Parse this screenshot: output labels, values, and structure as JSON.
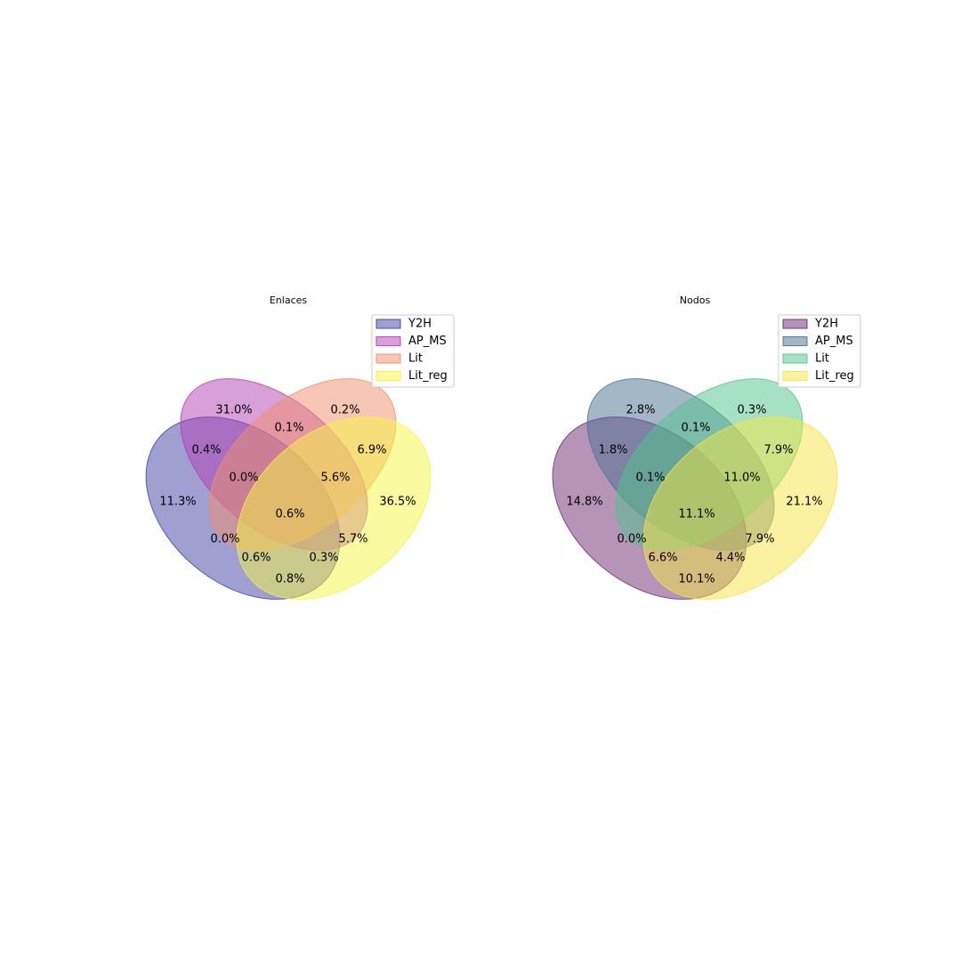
{
  "diagrams": [
    {
      "title": "Enlaces",
      "sets": [
        {
          "name": "Y2H",
          "color": "#3f3fa6"
        },
        {
          "name": "AP_MS",
          "color": "#b23fb2"
        },
        {
          "name": "Lit",
          "color": "#f08e6a"
        },
        {
          "name": "Lit_reg",
          "color": "#f5f542"
        }
      ],
      "regions": [
        {
          "sets": [
            "AP_MS"
          ],
          "label": "31.0%"
        },
        {
          "sets": [
            "Lit"
          ],
          "label": "0.2%"
        },
        {
          "sets": [
            "AP_MS",
            "Lit"
          ],
          "label": "0.1%"
        },
        {
          "sets": [
            "Y2H",
            "AP_MS"
          ],
          "label": "0.4%"
        },
        {
          "sets": [
            "Lit",
            "Lit_reg"
          ],
          "label": "6.9%"
        },
        {
          "sets": [
            "Y2H",
            "AP_MS",
            "Lit"
          ],
          "label": "0.0%"
        },
        {
          "sets": [
            "AP_MS",
            "Lit",
            "Lit_reg"
          ],
          "label": "5.6%"
        },
        {
          "sets": [
            "Y2H"
          ],
          "label": "11.3%"
        },
        {
          "sets": [
            "Lit_reg"
          ],
          "label": "36.5%"
        },
        {
          "sets": [
            "Y2H",
            "AP_MS",
            "Lit",
            "Lit_reg"
          ],
          "label": "0.6%"
        },
        {
          "sets": [
            "Y2H",
            "Lit"
          ],
          "label": "0.0%"
        },
        {
          "sets": [
            "AP_MS",
            "Lit_reg"
          ],
          "label": "5.7%"
        },
        {
          "sets": [
            "Y2H",
            "Lit",
            "Lit_reg"
          ],
          "label": "0.6%"
        },
        {
          "sets": [
            "Y2H",
            "AP_MS",
            "Lit_reg"
          ],
          "label": "0.3%"
        },
        {
          "sets": [
            "Y2H",
            "Lit_reg"
          ],
          "label": "0.8%"
        }
      ]
    },
    {
      "title": "Nodos",
      "sets": [
        {
          "name": "Y2H",
          "color": "#6b2a72"
        },
        {
          "name": "AP_MS",
          "color": "#4a7090"
        },
        {
          "name": "Lit",
          "color": "#4fc38a"
        },
        {
          "name": "Lit_reg",
          "color": "#f5e642"
        }
      ],
      "regions": [
        {
          "sets": [
            "AP_MS"
          ],
          "label": "2.8%"
        },
        {
          "sets": [
            "Lit"
          ],
          "label": "0.3%"
        },
        {
          "sets": [
            "AP_MS",
            "Lit"
          ],
          "label": "0.1%"
        },
        {
          "sets": [
            "Y2H",
            "AP_MS"
          ],
          "label": "1.8%"
        },
        {
          "sets": [
            "Lit",
            "Lit_reg"
          ],
          "label": "7.9%"
        },
        {
          "sets": [
            "Y2H",
            "AP_MS",
            "Lit"
          ],
          "label": "0.1%"
        },
        {
          "sets": [
            "AP_MS",
            "Lit",
            "Lit_reg"
          ],
          "label": "11.0%"
        },
        {
          "sets": [
            "Y2H"
          ],
          "label": "14.8%"
        },
        {
          "sets": [
            "Lit_reg"
          ],
          "label": "21.1%"
        },
        {
          "sets": [
            "Y2H",
            "AP_MS",
            "Lit",
            "Lit_reg"
          ],
          "label": "11.1%"
        },
        {
          "sets": [
            "Y2H",
            "Lit"
          ],
          "label": "0.0%"
        },
        {
          "sets": [
            "AP_MS",
            "Lit_reg"
          ],
          "label": "7.9%"
        },
        {
          "sets": [
            "Y2H",
            "Lit",
            "Lit_reg"
          ],
          "label": "6.6%"
        },
        {
          "sets": [
            "Y2H",
            "AP_MS",
            "Lit_reg"
          ],
          "label": "4.4%"
        },
        {
          "sets": [
            "Y2H",
            "Lit_reg"
          ],
          "label": "10.1%"
        }
      ]
    }
  ]
}
